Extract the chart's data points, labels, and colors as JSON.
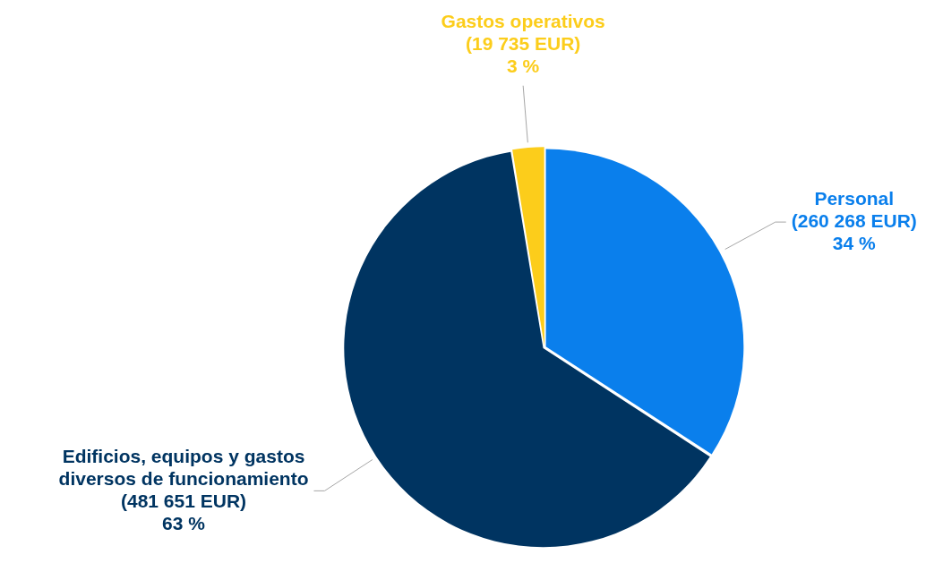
{
  "chart_data": {
    "type": "pie",
    "categories": [
      "Personal",
      "Edificios, equipos y gastos\ndiversos de funcionamiento",
      "Gastos operativos"
    ],
    "values": [
      260268,
      481651,
      19735
    ],
    "value_labels": [
      "(260 268 EUR)\n34 %",
      "(481 651 EUR)\n63 %",
      "(19 735 EUR)\n3 %"
    ],
    "colors": [
      "#0a7fec",
      "#003461",
      "#fccd1b"
    ],
    "legend": false
  }
}
